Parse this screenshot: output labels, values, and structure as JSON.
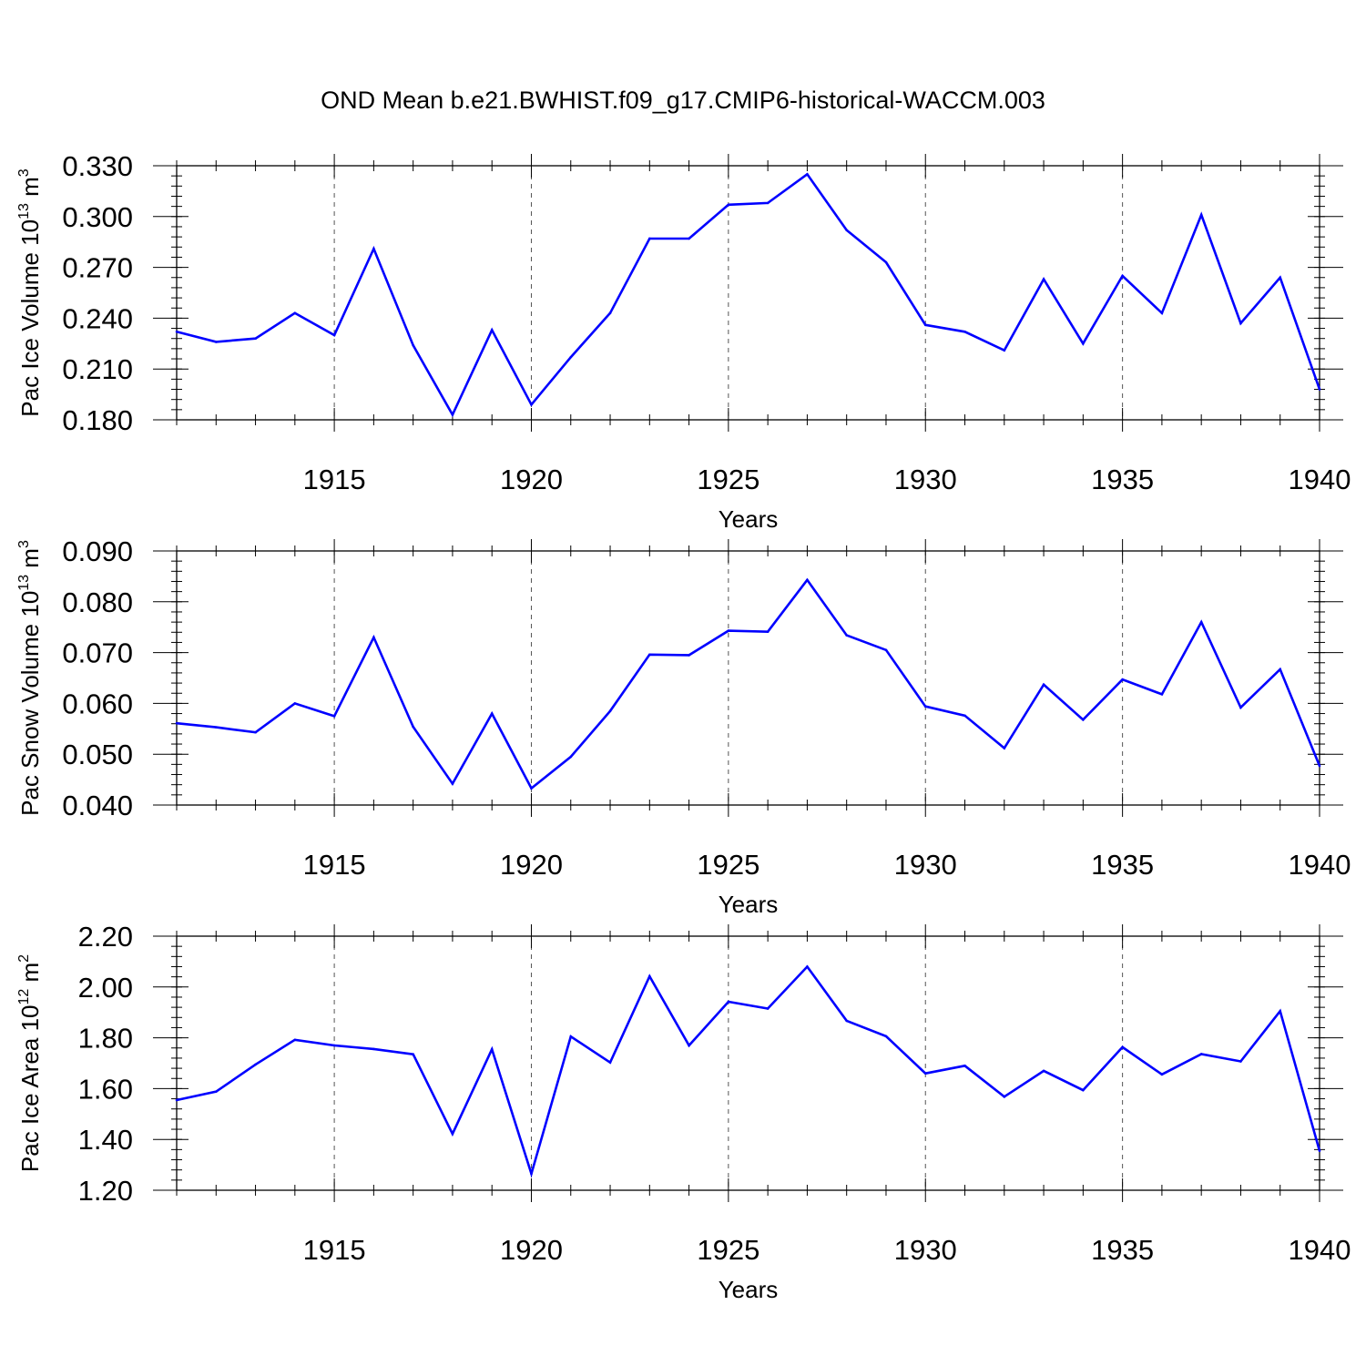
{
  "figure": {
    "title": "OND Mean b.e21.BWHIST.f09_g17.CMIP6-historical-WACCM.003",
    "line_color": "#0000ff",
    "grid_color": "#555555"
  },
  "chart_data": [
    {
      "type": "line",
      "title": "OND Mean b.e21.BWHIST.f09_g17.CMIP6-historical-WACCM.003",
      "xlabel": "Years",
      "ylabel": {
        "text": "Pac Ice Volume 10",
        "exp": "13",
        "unit": " m",
        "unit_exp": "3"
      },
      "xlim": [
        1911,
        1940
      ],
      "ylim": [
        0.18,
        0.33
      ],
      "xticks": [
        1915,
        1920,
        1925,
        1930,
        1935,
        1940
      ],
      "xtick_labels": [
        "1915",
        "1920",
        "1925",
        "1930",
        "1935",
        "1940"
      ],
      "yticks": [
        0.18,
        0.21,
        0.24,
        0.27,
        0.3,
        0.33
      ],
      "ytick_labels": [
        "0.180",
        "0.210",
        "0.240",
        "0.270",
        "0.300",
        "0.330"
      ],
      "y_minor_step": 0.006,
      "grid": "x dashed at major ticks",
      "series": [
        {
          "name": "Pac Ice Volume",
          "x": [
            1911,
            1912,
            1913,
            1914,
            1915,
            1916,
            1917,
            1918,
            1919,
            1920,
            1921,
            1922,
            1923,
            1924,
            1925,
            1926,
            1927,
            1928,
            1929,
            1930,
            1931,
            1932,
            1933,
            1934,
            1935,
            1936,
            1937,
            1938,
            1939,
            1940
          ],
          "values": [
            0.232,
            0.226,
            0.228,
            0.243,
            0.23,
            0.281,
            0.224,
            0.183,
            0.233,
            0.189,
            0.217,
            0.243,
            0.287,
            0.287,
            0.307,
            0.308,
            0.325,
            0.292,
            0.273,
            0.236,
            0.232,
            0.221,
            0.263,
            0.225,
            0.265,
            0.243,
            0.301,
            0.237,
            0.264,
            0.198
          ]
        }
      ]
    },
    {
      "type": "line",
      "xlabel": "Years",
      "ylabel": {
        "text": "Pac Snow Volume 10",
        "exp": "13",
        "unit": " m",
        "unit_exp": "3"
      },
      "xlim": [
        1911,
        1940
      ],
      "ylim": [
        0.04,
        0.09
      ],
      "xticks": [
        1915,
        1920,
        1925,
        1930,
        1935,
        1940
      ],
      "xtick_labels": [
        "1915",
        "1920",
        "1925",
        "1930",
        "1935",
        "1940"
      ],
      "yticks": [
        0.04,
        0.05,
        0.06,
        0.07,
        0.08,
        0.09
      ],
      "ytick_labels": [
        "0.040",
        "0.050",
        "0.060",
        "0.070",
        "0.080",
        "0.090"
      ],
      "y_minor_step": 0.002,
      "grid": "x dashed at major ticks",
      "series": [
        {
          "name": "Pac Snow Volume",
          "x": [
            1911,
            1912,
            1913,
            1914,
            1915,
            1916,
            1917,
            1918,
            1919,
            1920,
            1921,
            1922,
            1923,
            1924,
            1925,
            1926,
            1927,
            1928,
            1929,
            1930,
            1931,
            1932,
            1933,
            1934,
            1935,
            1936,
            1937,
            1938,
            1939,
            1940
          ],
          "values": [
            0.0561,
            0.0553,
            0.0543,
            0.06,
            0.0575,
            0.073,
            0.0554,
            0.0442,
            0.058,
            0.0433,
            0.0495,
            0.0585,
            0.0696,
            0.0695,
            0.0743,
            0.0741,
            0.0843,
            0.0734,
            0.0705,
            0.0594,
            0.0576,
            0.0512,
            0.0637,
            0.0568,
            0.0647,
            0.0618,
            0.076,
            0.0592,
            0.0667,
            0.0477
          ]
        }
      ]
    },
    {
      "type": "line",
      "xlabel": "Years",
      "ylabel": {
        "text": "Pac Ice Area 10",
        "exp": "12",
        "unit": " m",
        "unit_exp": "2"
      },
      "xlim": [
        1911,
        1940
      ],
      "ylim": [
        1.2,
        2.2
      ],
      "xticks": [
        1915,
        1920,
        1925,
        1930,
        1935,
        1940
      ],
      "xtick_labels": [
        "1915",
        "1920",
        "1925",
        "1930",
        "1935",
        "1940"
      ],
      "yticks": [
        1.2,
        1.4,
        1.6,
        1.8,
        2.0,
        2.2
      ],
      "ytick_labels": [
        "1.20",
        "1.40",
        "1.60",
        "1.80",
        "2.00",
        "2.20"
      ],
      "y_minor_step": 0.04,
      "grid": "x dashed at major ticks",
      "series": [
        {
          "name": "Pac Ice Area",
          "x": [
            1911,
            1912,
            1913,
            1914,
            1915,
            1916,
            1917,
            1918,
            1919,
            1920,
            1921,
            1922,
            1923,
            1924,
            1925,
            1926,
            1927,
            1928,
            1929,
            1930,
            1931,
            1932,
            1933,
            1934,
            1935,
            1936,
            1937,
            1938,
            1939,
            1940
          ],
          "values": [
            1.555,
            1.588,
            1.695,
            1.792,
            1.77,
            1.756,
            1.735,
            1.422,
            1.755,
            1.265,
            1.805,
            1.703,
            2.042,
            1.77,
            1.942,
            1.915,
            2.08,
            1.867,
            1.806,
            1.66,
            1.69,
            1.568,
            1.67,
            1.594,
            1.763,
            1.656,
            1.736,
            1.707,
            1.905,
            1.355
          ]
        }
      ]
    }
  ]
}
